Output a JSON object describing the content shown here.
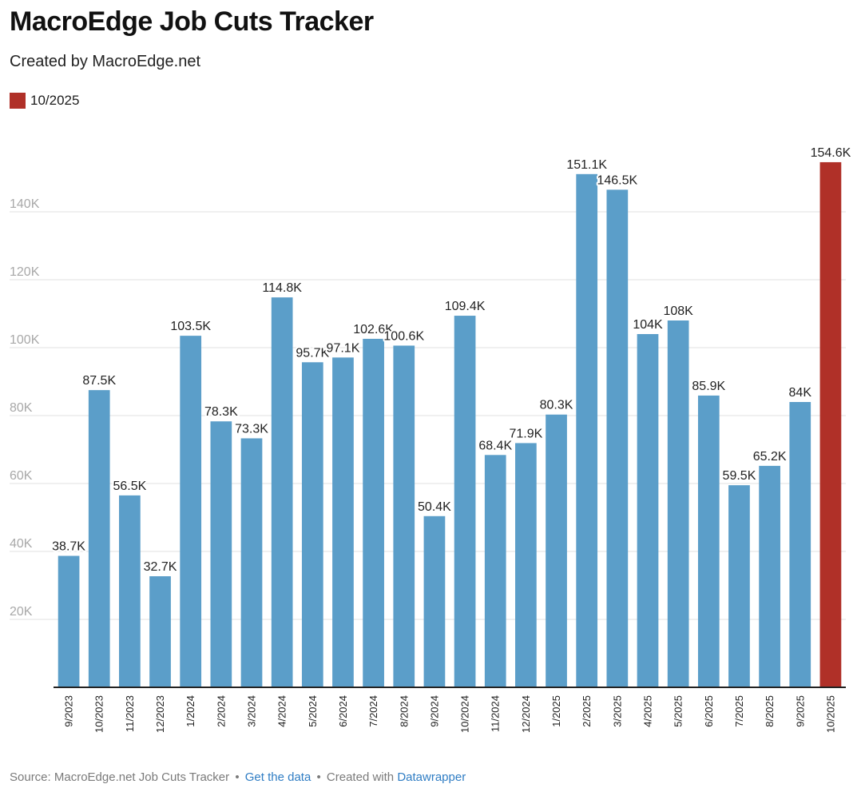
{
  "header": {
    "title": "MacroEdge Job Cuts Tracker",
    "subtitle": "Created by MacroEdge.net"
  },
  "legend": {
    "label": "10/2025",
    "color": "#b03028"
  },
  "colors": {
    "bar": "#5b9ec9",
    "highlight": "#b03028",
    "grid": "#e2e2e2",
    "tick": "#a8a8a8"
  },
  "footer": {
    "source_text": "Source: MacroEdge.net Job Cuts Tracker",
    "separator": "•",
    "get_data": "Get the data",
    "created_with": "Created with",
    "datawrapper": "Datawrapper"
  },
  "chart_data": {
    "type": "bar",
    "title": "MacroEdge Job Cuts Tracker",
    "subtitle": "Created by MacroEdge.net",
    "xlabel": "",
    "ylabel": "",
    "ylim": [
      0,
      160000
    ],
    "grid": true,
    "legend_position": "top-left",
    "y_ticks": [
      20000,
      40000,
      60000,
      80000,
      100000,
      120000,
      140000
    ],
    "y_tick_labels": [
      "20K",
      "40K",
      "60K",
      "80K",
      "100K",
      "120K",
      "140K"
    ],
    "categories": [
      "9/2023",
      "10/2023",
      "11/2023",
      "12/2023",
      "1/2024",
      "2/2024",
      "3/2024",
      "4/2024",
      "5/2024",
      "6/2024",
      "7/2024",
      "8/2024",
      "9/2024",
      "10/2024",
      "11/2024",
      "12/2024",
      "1/2025",
      "2/2025",
      "3/2025",
      "4/2025",
      "5/2025",
      "6/2025",
      "7/2025",
      "8/2025",
      "9/2025",
      "10/2025"
    ],
    "values": [
      38700,
      87500,
      56500,
      32700,
      103500,
      78300,
      73300,
      114800,
      95700,
      97100,
      102600,
      100600,
      50400,
      109400,
      68400,
      71900,
      80300,
      151100,
      146500,
      104000,
      108000,
      85900,
      59500,
      65200,
      84000,
      154600
    ],
    "labels": [
      "38.7K",
      "87.5K",
      "56.5K",
      "32.7K",
      "103.5K",
      "78.3K",
      "73.3K",
      "114.8K",
      "95.7K",
      "97.1K",
      "102.6K",
      "100.6K",
      "50.4K",
      "109.4K",
      "68.4K",
      "71.9K",
      "80.3K",
      "151.1K",
      "146.5K",
      "104K",
      "108K",
      "85.9K",
      "59.5K",
      "65.2K",
      "84K",
      "154.6K"
    ],
    "highlight_category": "10/2025"
  }
}
